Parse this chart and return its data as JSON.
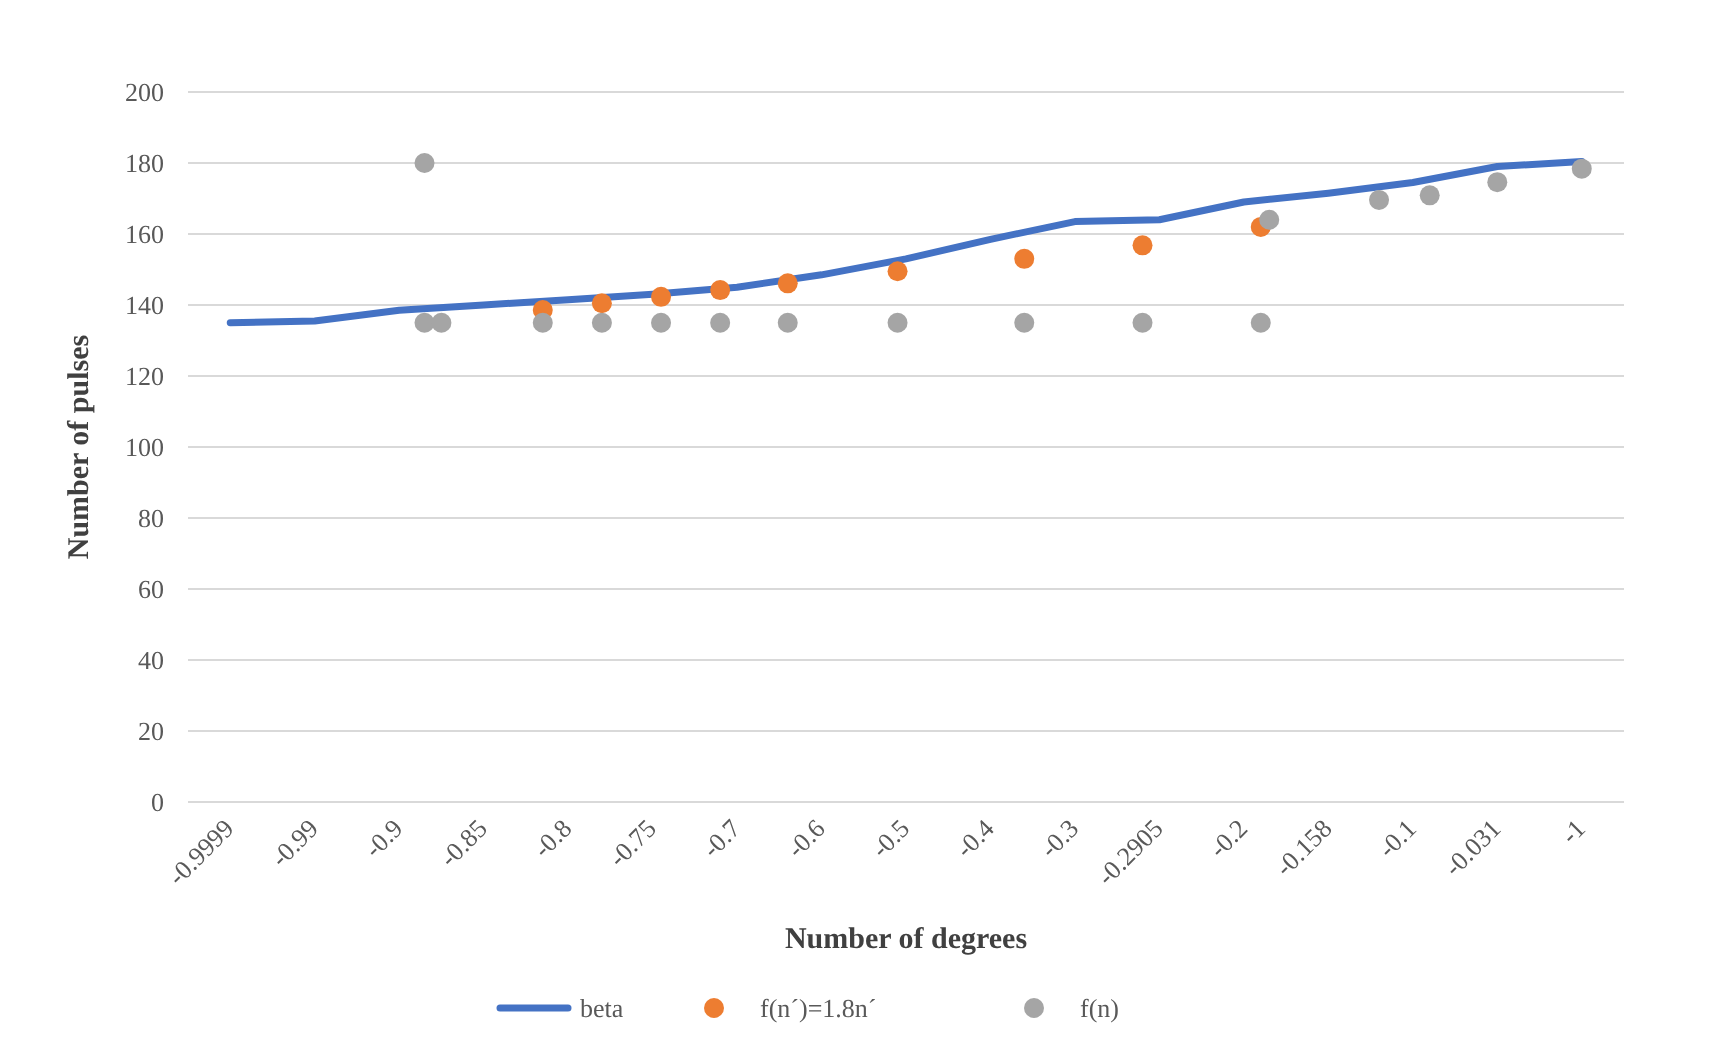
{
  "chart_data": {
    "type": "line",
    "xlabel": "Number of degrees",
    "ylabel": "Number of pulses",
    "categories": [
      "-0.9999",
      null,
      null,
      null,
      null,
      null,
      null,
      null,
      null,
      null,
      "-0.99",
      null,
      null,
      null,
      null,
      null,
      null,
      null,
      null,
      null,
      "-0.9",
      null,
      null,
      null,
      null,
      null,
      null,
      null,
      null,
      null,
      "-0.85",
      null,
      null,
      null,
      null,
      null,
      null,
      null,
      null,
      null,
      "-0.8",
      null,
      null,
      null,
      null,
      null,
      null,
      null,
      null,
      null,
      "-0.75",
      null,
      null,
      null,
      null,
      null,
      null,
      null,
      null,
      null,
      "-0.7",
      null,
      null,
      null,
      null,
      null,
      null,
      null,
      null,
      null,
      "-0.6",
      null,
      null,
      null,
      null,
      null,
      null,
      null,
      null,
      null,
      "-0.5",
      null,
      null,
      null,
      null,
      null,
      null,
      null,
      null,
      null,
      "-0.4",
      null,
      null,
      null,
      null,
      null,
      null,
      null,
      null,
      null,
      "-0.3",
      null,
      null,
      null,
      null,
      null,
      null,
      null,
      null,
      null,
      "-0.2905",
      null,
      null,
      null,
      null,
      null,
      null,
      null,
      null,
      null,
      "-0.2",
      null,
      null,
      null,
      null,
      null,
      null,
      null,
      null,
      null,
      "-0.158",
      null,
      null,
      null,
      null,
      null,
      null,
      null,
      null,
      null,
      "-0.1",
      null,
      null,
      null,
      null,
      null,
      null,
      null,
      null,
      null,
      "-0.031",
      null,
      null,
      null,
      null,
      null,
      null,
      null,
      null,
      null,
      "-1"
    ],
    "series": [
      {
        "name": "beta",
        "color": "#4472c4",
        "values": [
          135,
          null,
          null,
          null,
          null,
          null,
          null,
          null,
          null,
          null,
          135.5,
          null,
          null,
          null,
          null,
          null,
          null,
          null,
          null,
          null,
          138.5,
          null,
          null,
          null,
          null,
          null,
          null,
          null,
          null,
          null,
          140,
          null,
          null,
          null,
          null,
          null,
          null,
          null,
          null,
          null,
          141.5,
          null,
          null,
          null,
          null,
          null,
          null,
          null,
          null,
          null,
          143,
          null,
          null,
          null,
          null,
          null,
          null,
          null,
          null,
          null,
          145,
          null,
          null,
          null,
          null,
          null,
          null,
          null,
          null,
          null,
          148.5,
          null,
          null,
          null,
          null,
          null,
          null,
          null,
          null,
          null,
          153,
          null,
          null,
          null,
          null,
          null,
          null,
          null,
          null,
          null,
          158.5,
          null,
          null,
          null,
          null,
          null,
          null,
          null,
          null,
          null,
          163.5,
          null,
          null,
          null,
          null,
          null,
          null,
          null,
          null,
          null,
          164,
          null,
          null,
          null,
          null,
          null,
          null,
          null,
          null,
          null,
          169,
          null,
          null,
          null,
          null,
          null,
          null,
          null,
          null,
          null,
          171.5,
          null,
          null,
          null,
          null,
          null,
          null,
          null,
          null,
          null,
          174.5,
          null,
          null,
          null,
          null,
          null,
          null,
          null,
          null,
          null,
          179,
          null,
          null,
          null,
          null,
          null,
          null,
          null,
          null,
          null,
          180.4
        ]
      },
      {
        "name": "f(n´)=1.8n´",
        "type": "scatter",
        "color": "#ed7d31",
        "values": [
          null,
          null,
          null,
          null,
          null,
          null,
          null,
          null,
          null,
          null,
          null,
          null,
          null,
          null,
          null,
          null,
          null,
          null,
          null,
          null,
          null,
          null,
          null,
          null,
          null,
          null,
          null,
          null,
          null,
          null,
          null,
          null,
          null,
          null,
          null,
          null,
          null,
          138.6,
          null,
          null,
          null,
          null,
          null,
          null,
          140.5,
          null,
          null,
          null,
          null,
          null,
          null,
          142.3,
          null,
          null,
          null,
          null,
          null,
          null,
          144.2,
          null,
          null,
          null,
          null,
          null,
          null,
          null,
          146.1,
          null,
          null,
          null,
          null,
          null,
          null,
          null,
          null,
          null,
          null,
          null,
          null,
          149.5,
          null,
          null,
          null,
          null,
          null,
          null,
          null,
          null,
          null,
          null,
          null,
          null,
          null,
          null,
          153,
          null,
          null,
          null,
          null,
          null,
          null,
          null,
          null,
          null,
          null,
          null,
          null,
          null,
          156.8,
          null,
          null,
          null,
          null,
          null,
          null,
          null,
          null,
          null,
          null,
          null,
          null,
          null,
          162,
          null,
          null,
          null,
          null,
          null,
          null,
          null,
          null,
          null,
          null,
          null,
          null,
          null,
          null,
          null,
          null,
          null,
          null,
          null,
          null,
          null,
          null,
          null,
          null,
          null,
          null,
          null,
          null,
          null,
          null,
          null,
          null,
          null,
          null,
          null,
          null,
          null,
          null
        ]
      },
      {
        "name": "f(n)",
        "type": "scatter",
        "color": "#a5a5a5",
        "values": [
          null,
          null,
          null,
          null,
          null,
          null,
          null,
          null,
          null,
          null,
          null,
          null,
          null,
          null,
          null,
          null,
          null,
          null,
          null,
          null,
          null,
          null,
          null,
          135,
          null,
          135,
          null,
          null,
          null,
          null,
          null,
          null,
          null,
          null,
          null,
          null,
          null,
          135,
          null,
          null,
          null,
          null,
          null,
          null,
          135,
          null,
          null,
          null,
          null,
          null,
          null,
          135,
          null,
          null,
          null,
          null,
          null,
          null,
          135,
          null,
          null,
          null,
          null,
          null,
          null,
          null,
          135,
          null,
          null,
          null,
          null,
          null,
          null,
          null,
          null,
          null,
          null,
          null,
          null,
          135,
          null,
          null,
          null,
          null,
          null,
          null,
          null,
          null,
          null,
          null,
          null,
          null,
          null,
          null,
          135,
          null,
          null,
          null,
          null,
          null,
          null,
          null,
          null,
          null,
          null,
          null,
          null,
          null,
          135,
          null,
          null,
          null,
          null,
          null,
          null,
          null,
          null,
          null,
          null,
          null,
          null,
          null,
          135,
          164,
          null,
          null,
          null,
          null,
          null,
          null,
          null,
          null,
          null,
          null,
          null,
          null,
          169.6,
          null,
          null,
          null,
          null,
          null,
          170.9,
          null,
          null,
          null,
          null,
          null,
          null,
          null,
          174.6,
          null,
          null,
          null,
          null,
          null,
          null,
          null,
          null,
          null,
          178.4
        ]
      },
      {
        "type": "scatter",
        "color": "#a5a5a5",
        "values": [
          null,
          null,
          null,
          null,
          null,
          null,
          null,
          null,
          null,
          null,
          null,
          null,
          null,
          null,
          null,
          null,
          null,
          null,
          null,
          null,
          null,
          null,
          null,
          180,
          null,
          null,
          null,
          null,
          null,
          null,
          null,
          null,
          null,
          null,
          null,
          null,
          null,
          null,
          null,
          null,
          null,
          null,
          null,
          null,
          null,
          null,
          null,
          null,
          null,
          null,
          null,
          null,
          null,
          null,
          null,
          null,
          null,
          null,
          null,
          null,
          null,
          null,
          null,
          null,
          null,
          null,
          null,
          null,
          null,
          null,
          null,
          null,
          null,
          null,
          null,
          null,
          null,
          null,
          null,
          null,
          null,
          null,
          null,
          null,
          null,
          null,
          null,
          null,
          null,
          null,
          null,
          null,
          null,
          null,
          null,
          null,
          null,
          null,
          null,
          null,
          null,
          null,
          null,
          null,
          null,
          null,
          null,
          null,
          null,
          null,
          null,
          null,
          null,
          null,
          null,
          null,
          null,
          null,
          null,
          null,
          null,
          null,
          null,
          null,
          null,
          null,
          null,
          null,
          null,
          null,
          null,
          null,
          null,
          null,
          null,
          null,
          null,
          null,
          null,
          null,
          null,
          null,
          null,
          null,
          null,
          null,
          null,
          null,
          null,
          null,
          null,
          null,
          null,
          null,
          null,
          null,
          null,
          null,
          null,
          null,
          null
        ]
      }
    ],
    "ylim": [
      0,
      200
    ],
    "yticks": [
      0,
      20,
      40,
      60,
      80,
      100,
      120,
      140,
      160,
      180,
      200
    ],
    "grid": "y",
    "legend": "bottom"
  }
}
